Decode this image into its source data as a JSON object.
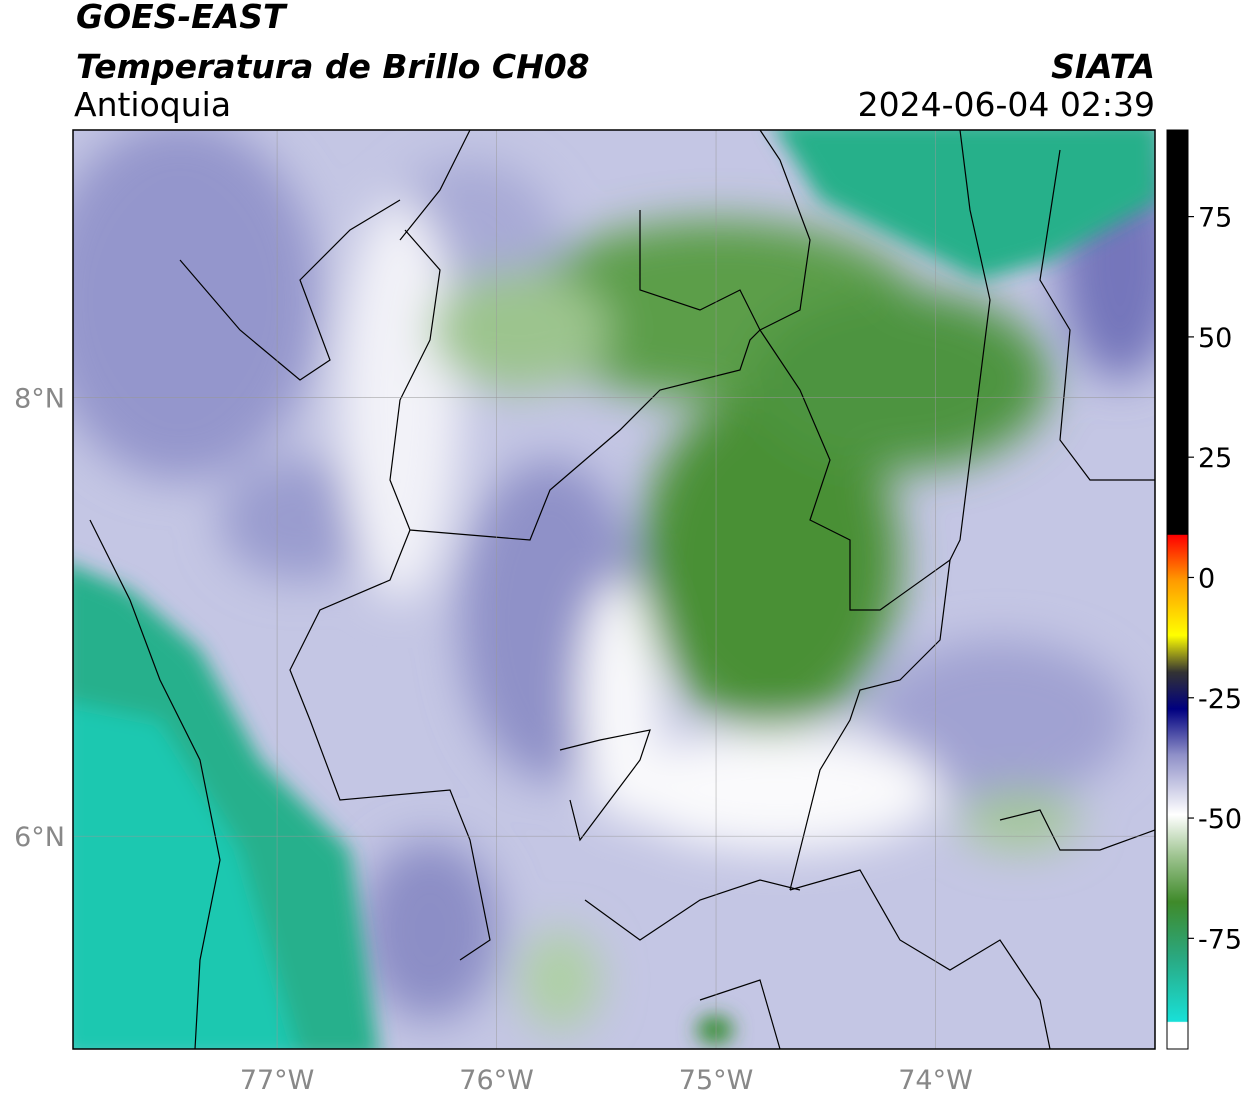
{
  "header": {
    "satellite": "GOES-EAST",
    "product": "Temperatura de Brillo CH08",
    "region": "Antioquia",
    "source": "SIATA",
    "datetime": "2024-06-04 02:39"
  },
  "map": {
    "xlim": [
      -77.93,
      -73.0
    ],
    "ylim": [
      5.03,
      9.22
    ],
    "xticks": [
      {
        "value": -77,
        "label": "77°W"
      },
      {
        "value": -76,
        "label": "76°W"
      },
      {
        "value": -75,
        "label": "75°W"
      },
      {
        "value": -74,
        "label": "74°W"
      }
    ],
    "yticks": [
      {
        "value": 8,
        "label": "8°N"
      },
      {
        "value": 6,
        "label": "6°N"
      }
    ],
    "grid": true
  },
  "colorbar": {
    "lim": [
      -98,
      93
    ],
    "ticks": [
      75,
      50,
      25,
      0,
      -25,
      -50,
      -75
    ]
  }
}
